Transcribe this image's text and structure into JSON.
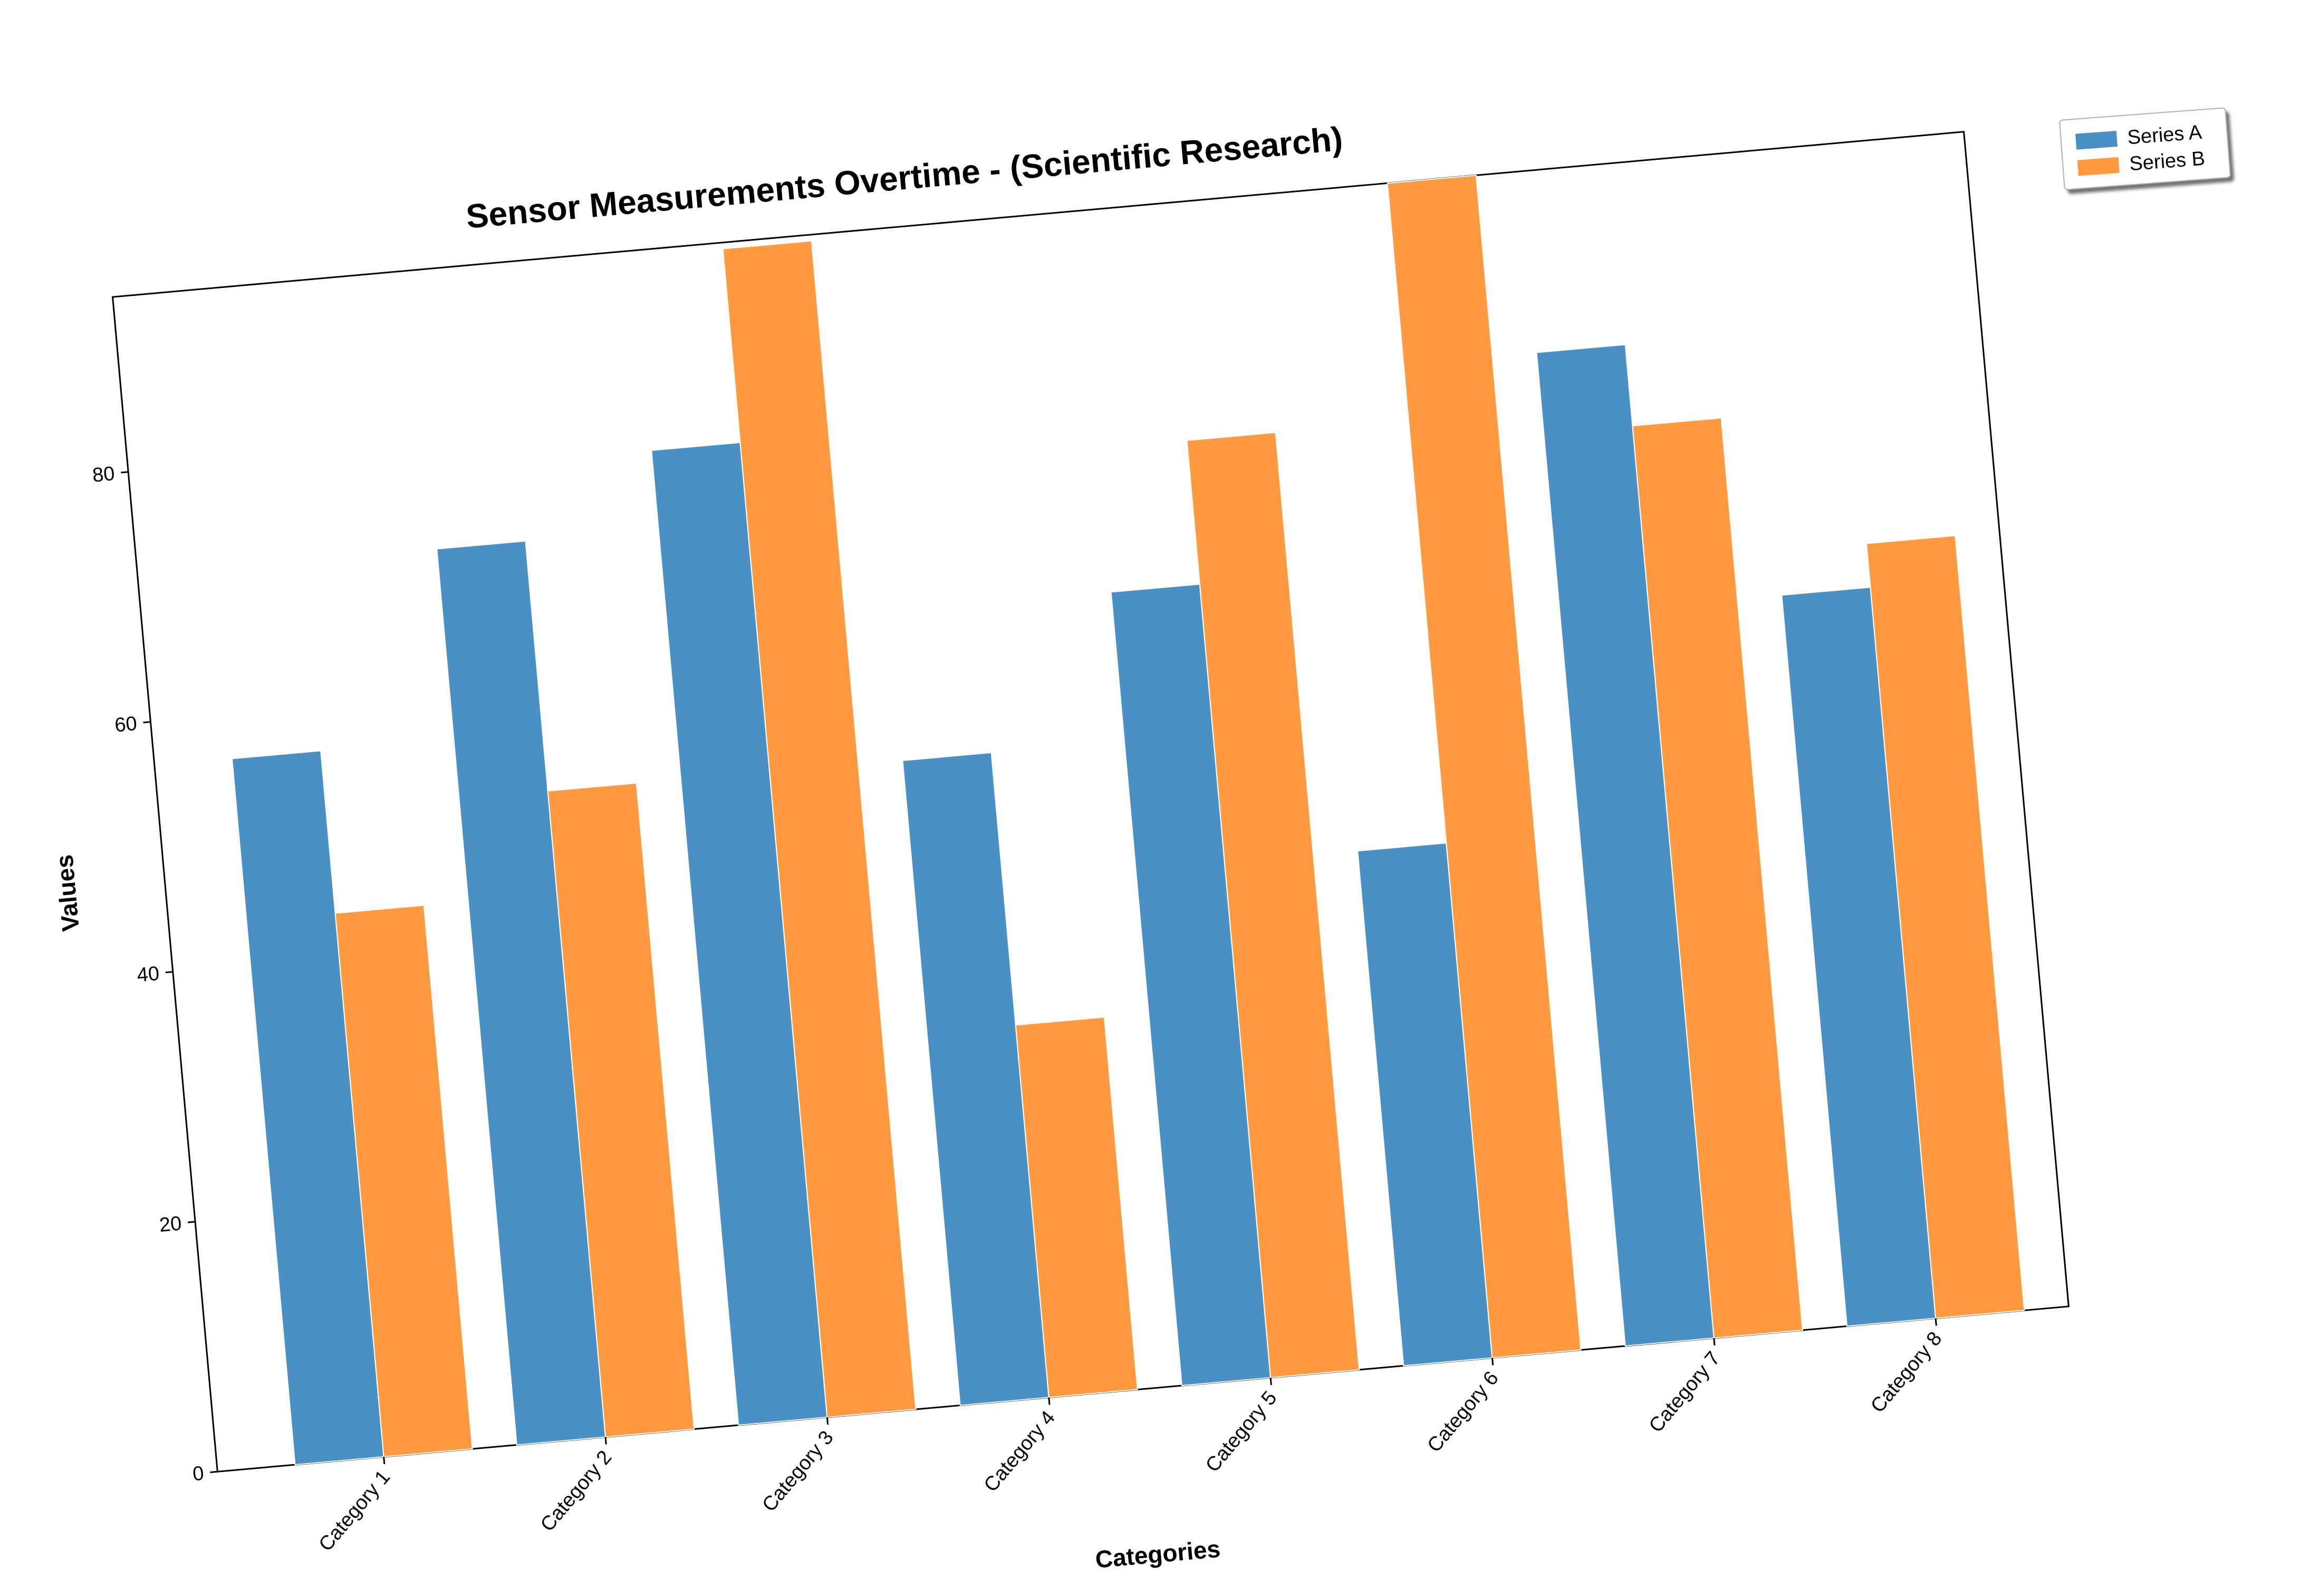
{
  "chart_data": {
    "type": "bar",
    "title": "Sensor Measurements Overtime - (Scientific Research)",
    "xlabel": "Categories",
    "ylabel": "Values",
    "categories": [
      "Category 1",
      "Category 2",
      "Category 3",
      "Category 4",
      "Category 5",
      "Category 6",
      "Category 7",
      "Category 8"
    ],
    "series": [
      {
        "name": "Series A",
        "color": "#4a90c4",
        "values": [
          56.5,
          71.7,
          78.0,
          51.6,
          63.5,
          41.2,
          79.5,
          58.5
        ]
      },
      {
        "name": "Series B",
        "color": "#ff9a40",
        "values": [
          43.5,
          51.7,
          93.5,
          29.8,
          75.0,
          94.0,
          73.0,
          62.0
        ]
      }
    ],
    "ylim": [
      0,
      94
    ],
    "yticks": [
      0,
      20,
      40,
      60,
      80
    ],
    "grid": false,
    "legend_position": "top-right"
  }
}
